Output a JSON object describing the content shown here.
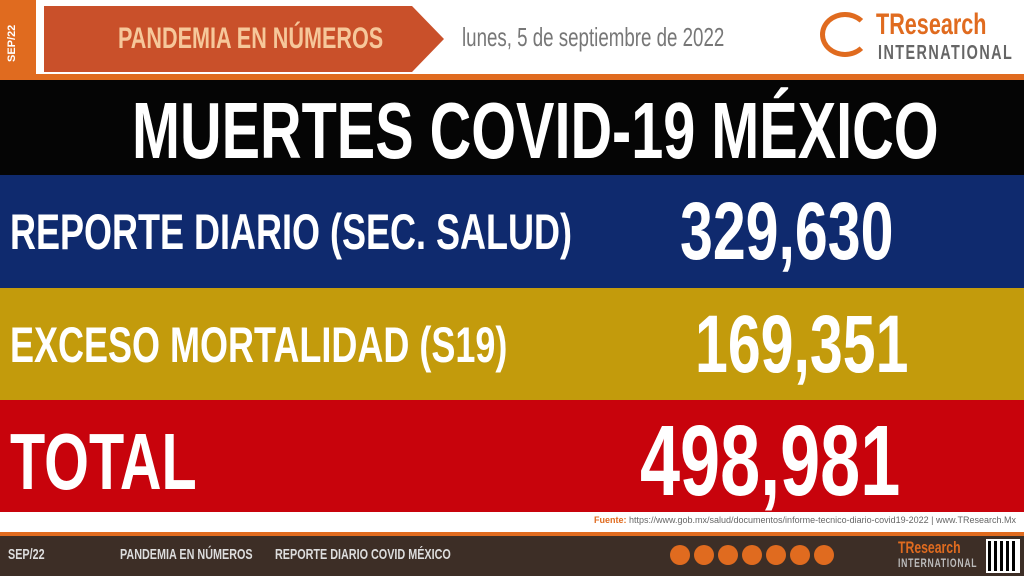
{
  "header": {
    "tag": "SEP/22",
    "banner": "PANDEMIA EN NÚMEROS",
    "date": "lunes, 5 de septiembre de 2022",
    "brand": "TResearch",
    "brand_sub": "INTERNATIONAL"
  },
  "title": "MUERTES COVID-19 MÉXICO",
  "rows": [
    {
      "label": "REPORTE DIARIO (SEC. SALUD)",
      "value": "329,630"
    },
    {
      "label": "EXCESO MORTALIDAD (S19)",
      "value": "169,351"
    },
    {
      "label": "TOTAL",
      "value": "498,981"
    }
  ],
  "source": {
    "label": "Fuente:",
    "url": "https://www.gob.mx/salud/documentos/informe-tecnico-diario-covid19-2022",
    "site": "www.TResearch.Mx"
  },
  "footer": {
    "items": [
      "SEP/22",
      "PANDEMIA EN NÚMEROS",
      "REPORTE DIARIO COVID MÉXICO"
    ],
    "brand": "TResearch",
    "brand_sub": "INTERNATIONAL"
  }
}
